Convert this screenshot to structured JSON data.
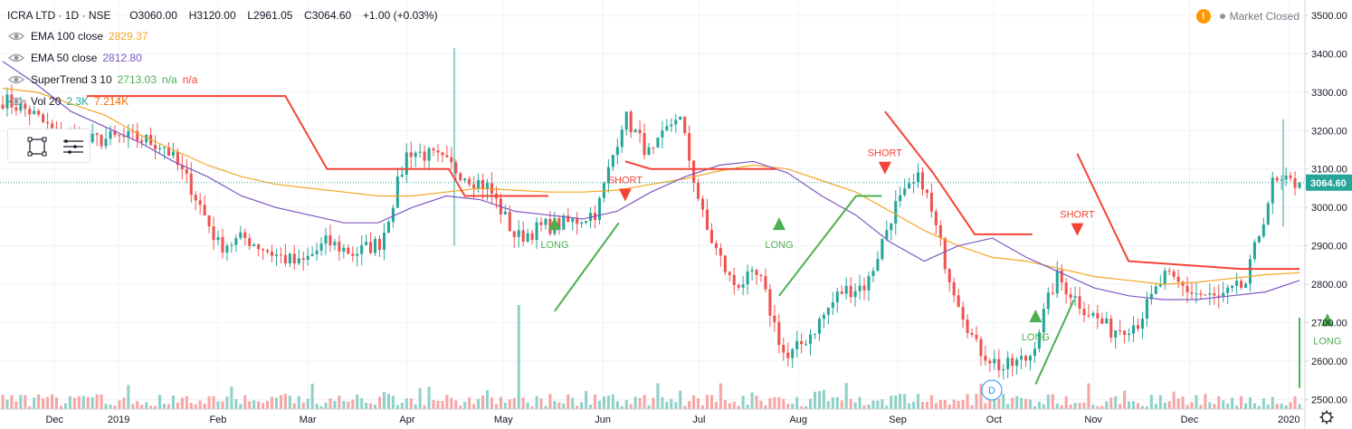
{
  "header": {
    "symbol": "ICRA LTD",
    "interval": "1D",
    "exchange": "NSE",
    "open_label": "O",
    "open": "3060.00",
    "high_label": "H",
    "high": "3120.00",
    "low_label": "L",
    "low": "2961.05",
    "close_label": "C",
    "close": "3064.60",
    "change": "+1.00 (+0.03%)"
  },
  "market_status": {
    "warning_icon": "warning-icon",
    "text": "Market Closed"
  },
  "indicators": [
    {
      "name": "EMA 100 close",
      "values": [
        "2829.37"
      ],
      "colors": [
        "#f5a623"
      ]
    },
    {
      "name": "EMA 50 close",
      "values": [
        "2812.80"
      ],
      "colors": [
        "#7e57c2"
      ]
    },
    {
      "name": "SuperTrend 3 10",
      "values": [
        "2713.03",
        "n/a",
        "n/a"
      ],
      "colors": [
        "#4caf50",
        "#4caf50",
        "#f44336"
      ]
    },
    {
      "name": "Vol 20",
      "values": [
        "2.3K",
        "7.214K"
      ],
      "colors": [
        "#26a69a",
        "#ef6c00"
      ]
    }
  ],
  "toolbar": {
    "icons": [
      "select-rectangle-icon",
      "hamburger-lines-icon"
    ]
  },
  "colors": {
    "up": "#26a69a",
    "down": "#ef5350",
    "ema100": "#f5a623",
    "ema50": "#7e57c2",
    "st_up": "#4caf50",
    "st_down": "#f44336",
    "vol_up": "#8fd1c8",
    "vol_down": "#f5a6a5",
    "price_tag": "#26a69a"
  },
  "chart_data": {
    "type": "candlestick",
    "title": "ICRA LTD · 1D · NSE",
    "ylim": [
      2475,
      3540
    ],
    "y_ticks": [
      "3500.00",
      "3400.00",
      "3300.00",
      "3200.00",
      "3100.00",
      "3000.00",
      "2900.00",
      "2800.00",
      "2700.00",
      "2600.00",
      "2500.00"
    ],
    "x_ticks": [
      "Dec",
      "2019",
      "Feb",
      "Mar",
      "Apr",
      "May",
      "Jun",
      "Jul",
      "Aug",
      "Sep",
      "Oct",
      "Nov",
      "Dec",
      "2020"
    ],
    "last_price": "3064.60",
    "price_anchors": [
      3280,
      3250,
      3190,
      3170,
      3180,
      3180,
      3160,
      3050,
      2900,
      2920,
      2880,
      2850,
      2910,
      2880,
      2910,
      3150,
      3130,
      3090,
      3050,
      2920,
      2950,
      2960,
      2990,
      3240,
      3130,
      3250,
      2950,
      2800,
      2820,
      2600,
      2680,
      2780,
      2800,
      3000,
      3080,
      2830,
      2640,
      2580,
      2610,
      2820,
      2740,
      2680,
      2700,
      2820,
      2780,
      2760,
      2800,
      3060,
      3065
    ],
    "ema100": [
      3310,
      3300,
      3270,
      3240,
      3190,
      3150,
      3110,
      3080,
      3060,
      3050,
      3040,
      3030,
      3030,
      3040,
      3050,
      3045,
      3040,
      3040,
      3045,
      3060,
      3075,
      3095,
      3110,
      3100,
      3070,
      3040,
      2990,
      2940,
      2900,
      2870,
      2860,
      2840,
      2820,
      2810,
      2800,
      2805,
      2815,
      2825,
      2830
    ],
    "ema50": [
      3380,
      3320,
      3250,
      3210,
      3170,
      3120,
      3080,
      3030,
      3000,
      2980,
      2960,
      2960,
      3000,
      3030,
      3020,
      2990,
      2980,
      2970,
      2990,
      3040,
      3080,
      3110,
      3120,
      3090,
      3030,
      2980,
      2910,
      2860,
      2900,
      2920,
      2870,
      2830,
      2790,
      2770,
      2760,
      2760,
      2770,
      2780,
      2810
    ],
    "supertrend": [
      {
        "trend": "down",
        "points": [
          [
            "Nov 28",
            3290
          ],
          [
            "Jan 28",
            3290
          ],
          [
            "Feb 10",
            3100
          ],
          [
            "Mar 20",
            3100
          ],
          [
            "Mar 25",
            3030
          ],
          [
            "Apr 20",
            3030
          ]
        ]
      },
      {
        "trend": "up",
        "points": [
          [
            "Apr 22",
            2730
          ],
          [
            "May 12",
            2960
          ]
        ]
      },
      {
        "trend": "down",
        "points": [
          [
            "May 14",
            3120
          ],
          [
            "May 22",
            3100
          ],
          [
            "Jun 30",
            3100
          ]
        ]
      },
      {
        "trend": "up",
        "points": [
          [
            "Jul 1",
            2770
          ],
          [
            "Jul 25",
            3030
          ],
          [
            "Aug 2",
            3030
          ]
        ]
      },
      {
        "trend": "down",
        "points": [
          [
            "Aug 3",
            3250
          ],
          [
            "Aug 18",
            3090
          ],
          [
            "Aug 31",
            2930
          ],
          [
            "Sep 18",
            2930
          ]
        ]
      },
      {
        "trend": "up",
        "points": [
          [
            "Sep 19",
            2540
          ],
          [
            "Oct 1",
            2760
          ]
        ]
      },
      {
        "trend": "down",
        "points": [
          [
            "Oct 2",
            3140
          ],
          [
            "Oct 18",
            2860
          ],
          [
            "Nov 22",
            2840
          ],
          [
            "Dec 18",
            2840
          ]
        ]
      },
      {
        "trend": "up",
        "points": [
          [
            "Dec 19",
            2530
          ],
          [
            "Jan 1",
            2610
          ],
          [
            "Jan 8",
            2713
          ]
        ]
      }
    ],
    "signals": [
      {
        "type": "LONG",
        "date": "Apr 22",
        "price": 2960
      },
      {
        "type": "SHORT",
        "date": "May 14",
        "price": 3030
      },
      {
        "type": "LONG",
        "date": "Jul 1",
        "price": 2960
      },
      {
        "type": "SHORT",
        "date": "Aug 3",
        "price": 3100
      },
      {
        "type": "LONG",
        "date": "Sep 19",
        "price": 2720
      },
      {
        "type": "SHORT",
        "date": "Oct 2",
        "price": 2940
      },
      {
        "type": "LONG",
        "date": "Dec 19",
        "price": 2710
      }
    ],
    "dividend_marker": "D"
  }
}
